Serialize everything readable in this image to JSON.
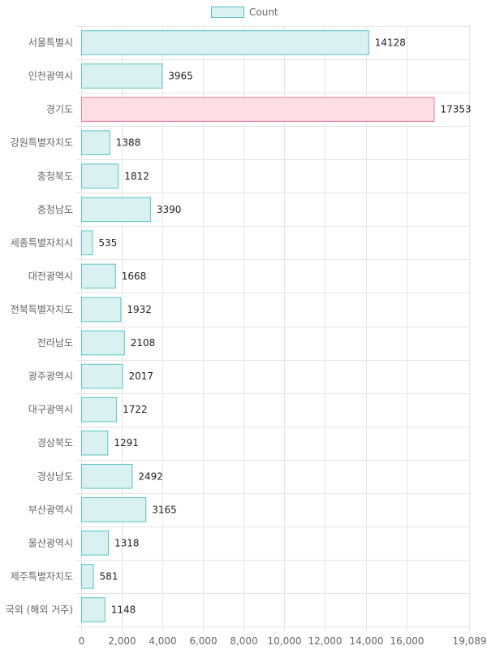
{
  "chart_data": {
    "type": "bar",
    "orientation": "horizontal",
    "legend": {
      "label": "Count",
      "position": "top-center"
    },
    "categories": [
      "서울특별시",
      "인천광역시",
      "경기도",
      "강원특별자치도",
      "충청북도",
      "충청남도",
      "세종특별자치시",
      "대전광역시",
      "전북특별자치도",
      "전라남도",
      "광주광역시",
      "대구광역시",
      "경상북도",
      "경상남도",
      "부산광역시",
      "울산광역시",
      "제주특별자치도",
      "국외 (해외 거주)"
    ],
    "series": [
      {
        "name": "Count",
        "values": [
          14128,
          3965,
          17353,
          1388,
          1812,
          3390,
          535,
          1668,
          1932,
          2108,
          2017,
          1722,
          1291,
          2492,
          3165,
          1318,
          581,
          1148
        ]
      }
    ],
    "highlight_category": "경기도",
    "xlim": [
      0,
      19089
    ],
    "x_ticks": [
      0,
      2000,
      4000,
      6000,
      8000,
      10000,
      12000,
      14000,
      16000,
      19089
    ],
    "x_tick_labels": [
      "0",
      "2,000",
      "4,000",
      "6,000",
      "8,000",
      "10,000",
      "12,000",
      "14,000",
      "16,000",
      "19,089"
    ],
    "colors": {
      "bar_fill": "#d9f1f1",
      "bar_stroke": "#5cc2c2",
      "highlight_fill": "#ffdfe6",
      "highlight_stroke": "#f07895",
      "grid": "#e5e5e5"
    }
  }
}
